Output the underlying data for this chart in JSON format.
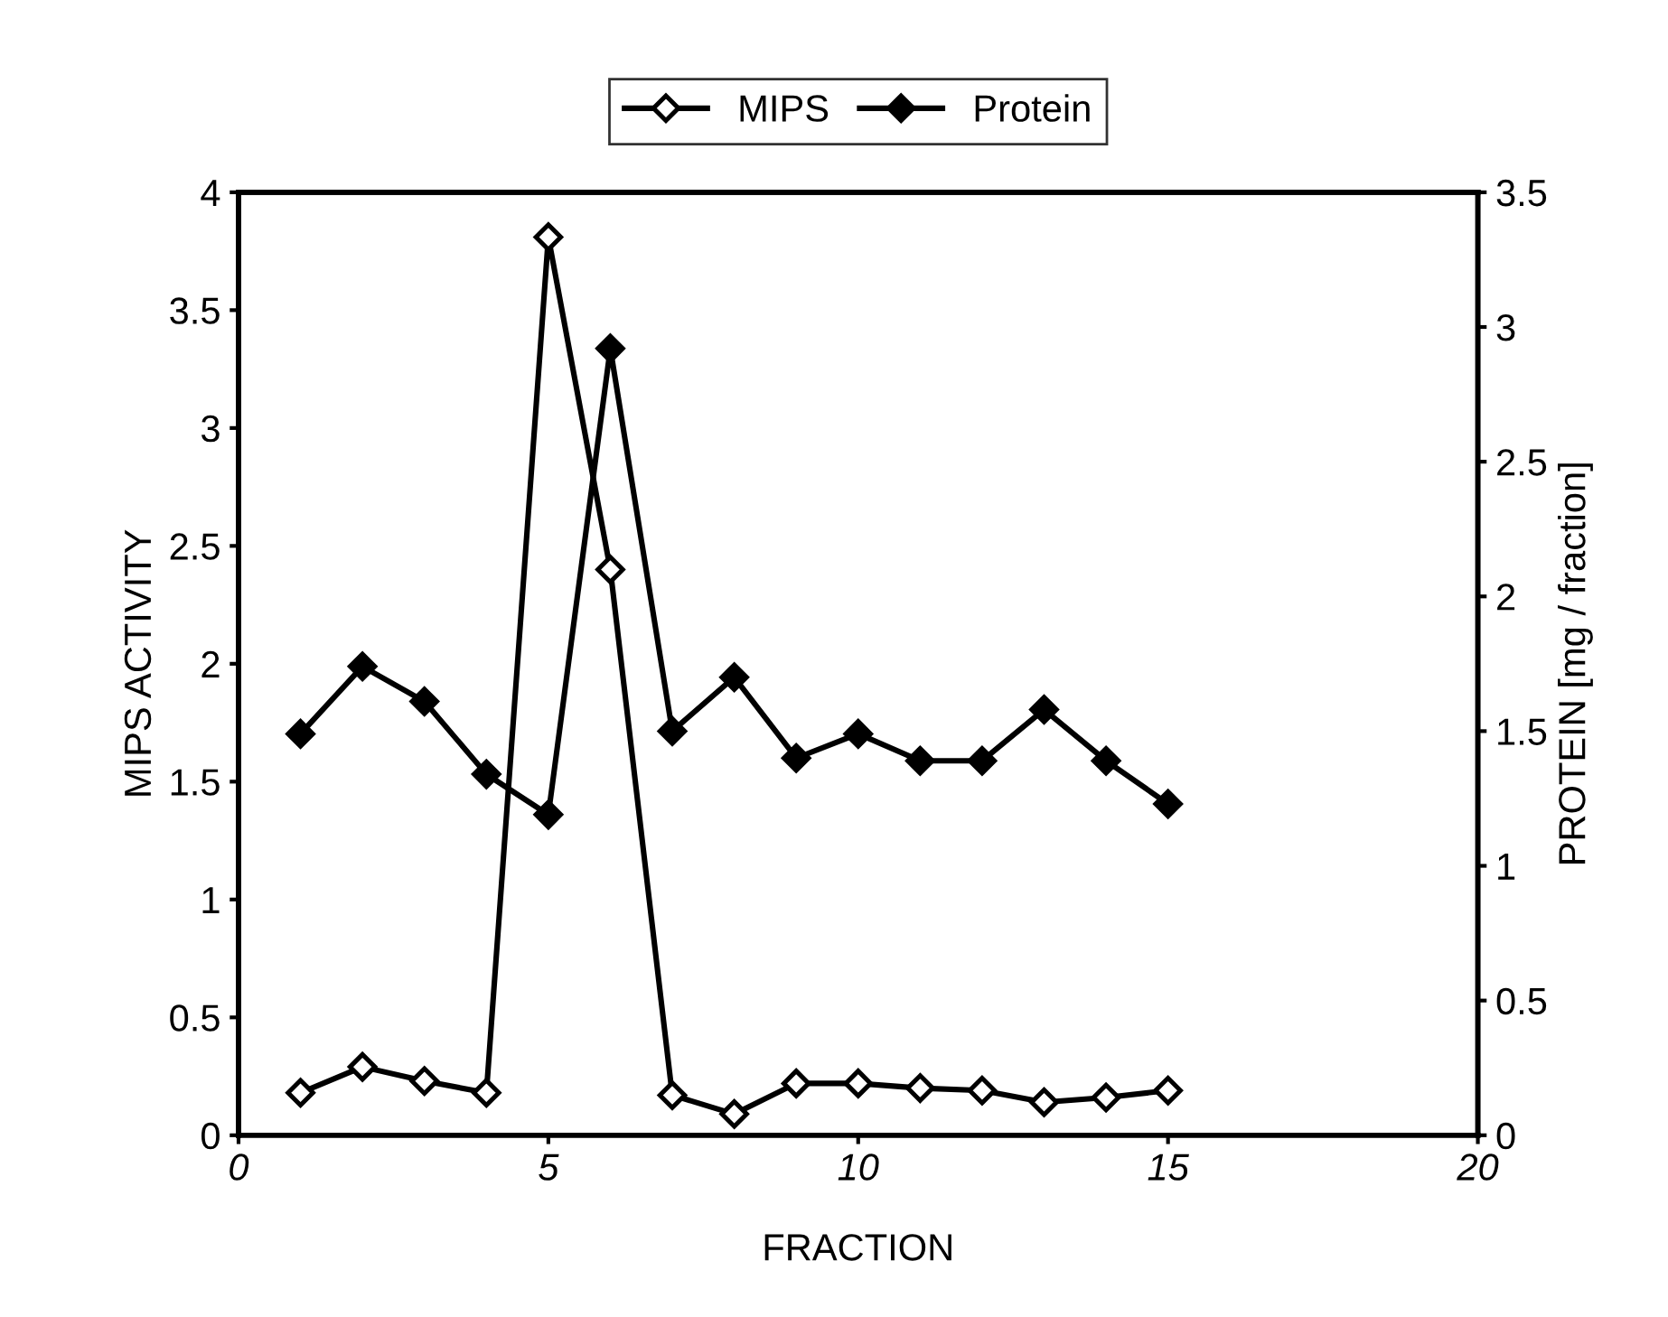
{
  "chart_data": {
    "type": "line",
    "xlabel": "FRACTION",
    "ylabel": "MIPS ACTIVITY",
    "y2label": "PROTEIN [mg / fraction]",
    "xlim": [
      0,
      20
    ],
    "xticks": [
      0,
      5,
      10,
      15,
      20
    ],
    "ylim": [
      0,
      4
    ],
    "yticks": [
      0,
      0.5,
      1,
      1.5,
      2,
      2.5,
      3,
      3.5,
      4
    ],
    "y2lim": [
      0,
      3.5
    ],
    "y2ticks": [
      0,
      0.5,
      1,
      1.5,
      2,
      2.5,
      3,
      3.5
    ],
    "x": [
      1,
      2,
      3,
      4,
      5,
      6,
      7,
      8,
      9,
      10,
      11,
      12,
      13,
      14,
      15
    ],
    "marker": "diamond",
    "line_style": "solid",
    "legend": "top",
    "grid": false,
    "series": [
      {
        "name": "MIPS",
        "color": "#000000",
        "values": [
          0.18,
          0.29,
          0.23,
          0.18,
          3.81,
          2.4,
          0.17,
          0.09,
          0.22,
          0.22,
          0.2,
          0.19,
          0.14,
          0.16,
          0.19
        ]
      },
      {
        "name": "Protein",
        "color": "#000000",
        "axis": "y2",
        "values": [
          1.49,
          1.74,
          1.61,
          1.34,
          1.19,
          2.92,
          1.5,
          1.7,
          1.4,
          1.49,
          1.39,
          1.39,
          1.58,
          1.39,
          1.23
        ]
      }
    ]
  }
}
